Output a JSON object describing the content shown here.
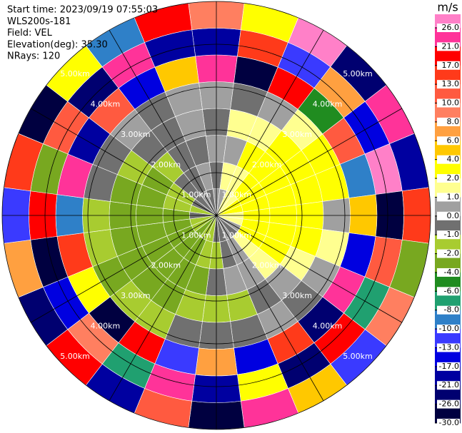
{
  "chart_data": {
    "type": "ppi",
    "info": [
      "Start time: 2023/09/19 07:55:03",
      "WLS200s-181",
      "Field: VEL",
      "Elevation(deg): 35.30",
      "NRays: 120"
    ],
    "unit": "m/s",
    "rlim": [
      0,
      5
    ],
    "range_rings": [
      {
        "value": 1,
        "label": "1.00km"
      },
      {
        "value": 2,
        "label": "2.00km"
      },
      {
        "value": 3,
        "label": "3.00km"
      },
      {
        "value": 4,
        "label": "4.00km"
      },
      {
        "value": 5,
        "label": "5.00km"
      }
    ],
    "colorbar": {
      "ticks": [
        {
          "value": 26,
          "label": "26.0"
        },
        {
          "value": 21,
          "label": "21.0"
        },
        {
          "value": 17,
          "label": "17.0"
        },
        {
          "value": 13,
          "label": "13.0"
        },
        {
          "value": 10,
          "label": "10.0"
        },
        {
          "value": 8,
          "label": "8.0"
        },
        {
          "value": 6,
          "label": "6.0"
        },
        {
          "value": 4,
          "label": "4.0"
        },
        {
          "value": 2,
          "label": "2.0"
        },
        {
          "value": 1,
          "label": "1.0"
        },
        {
          "value": 0,
          "label": "0.0"
        },
        {
          "value": -1,
          "label": "-1.0"
        },
        {
          "value": -2,
          "label": "-2.0"
        },
        {
          "value": -4,
          "label": "-4.0"
        },
        {
          "value": -6,
          "label": "-6.0"
        },
        {
          "value": -8,
          "label": "-8.0"
        },
        {
          "value": -10,
          "label": "-10.0"
        },
        {
          "value": -13,
          "label": "-13.0"
        },
        {
          "value": -17,
          "label": "-17.0"
        },
        {
          "value": -21,
          "label": "-21.0"
        },
        {
          "value": -26,
          "label": "-26.0"
        },
        {
          "value": -30,
          "label": "-30.0"
        }
      ],
      "over_color": "#ff80c8",
      "colors": [
        "#ff3399",
        "#ff0000",
        "#ff3a1a",
        "#ff5a40",
        "#ff7f60",
        "#ffa040",
        "#ffc800",
        "#ffff00",
        "#ffff90",
        "#a0a0a0",
        "#707070",
        "#a8cc30",
        "#78a820",
        "#208c20",
        "#20a070",
        "#2f80c8",
        "#3a3aff",
        "#0000e0",
        "#0000a0",
        "#000070",
        "#000040"
      ]
    },
    "rays": [
      [
        0.5,
        -0.5,
        0.5,
        -0.5,
        0.5,
        24,
        -18,
        9
      ],
      [
        0.5,
        1.5,
        0.5,
        1.5,
        -0.5,
        -28,
        15,
        3
      ],
      [
        1.5,
        1.5,
        2.5,
        1.5,
        0.5,
        19,
        -12,
        27
      ],
      [
        1.5,
        2.5,
        3,
        2.5,
        1.5,
        -5,
        7,
        -24
      ],
      [
        2.5,
        3,
        3,
        2.5,
        3,
        11,
        -15,
        22
      ],
      [
        2.5,
        3,
        3,
        3,
        2.5,
        -9,
        28,
        -19
      ],
      [
        1.5,
        3,
        3,
        3,
        0.5,
        5,
        -27,
        16
      ],
      [
        1.5,
        2.5,
        3,
        2.5,
        1.5,
        -14,
        12,
        -3
      ],
      [
        0.5,
        2.5,
        2.5,
        1.5,
        0.5,
        23,
        -7,
        9
      ],
      [
        -0.5,
        1.5,
        1.5,
        0.5,
        -0.5,
        -22,
        18,
        -11
      ],
      [
        0.5,
        0.5,
        0.5,
        -0.5,
        0.5,
        14,
        -25,
        6
      ],
      [
        -0.5,
        -0.5,
        0.5,
        -1.5,
        -0.5,
        -16,
        3,
        25
      ],
      [
        -0.5,
        -1.5,
        -0.5,
        -1.5,
        -0.5,
        8,
        -20,
        -29
      ],
      [
        -1.5,
        -1.5,
        -2.5,
        -1.5,
        -0.5,
        -11,
        26,
        13
      ],
      [
        -1.5,
        -2.5,
        -3,
        -2.5,
        -1.5,
        20,
        -6,
        -17
      ],
      [
        -2.5,
        -3,
        -3,
        -2.5,
        -1.5,
        -27,
        9,
        18
      ],
      [
        -1.5,
        -3,
        -3,
        -3,
        -2.5,
        4,
        -14,
        -23
      ],
      [
        -1.5,
        -2.5,
        -3,
        -3,
        -1.5,
        17,
        -29,
        7
      ],
      [
        -0.5,
        -2.5,
        -3,
        -2.5,
        -1.5,
        -8,
        21,
        -12
      ],
      [
        -1.5,
        -1.5,
        -2.5,
        -2.5,
        -0.5,
        26,
        -3,
        15
      ],
      [
        -0.5,
        -1.5,
        -2.5,
        -1.5,
        -0.5,
        -19,
        11,
        -26
      ],
      [
        -0.5,
        -0.5,
        -1.5,
        -0.5,
        0.5,
        12,
        -22,
        2.5
      ],
      [
        0.5,
        -0.5,
        -0.5,
        -0.5,
        -0.5,
        -13,
        24,
        -9
      ],
      [
        -0.5,
        0.5,
        -0.5,
        0.5,
        0.5,
        6,
        -17,
        21
      ]
    ]
  }
}
